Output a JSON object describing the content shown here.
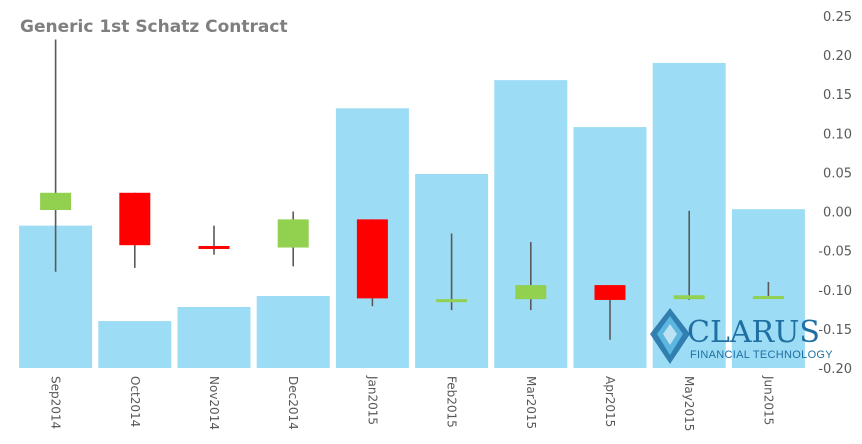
{
  "chart_data": {
    "type": "bar",
    "title": "Generic 1st Schatz Contract",
    "categories": [
      "Sep2014",
      "Oct2014",
      "Nov2014",
      "Dec2014",
      "Jan2015",
      "Feb2015",
      "Mar2015",
      "Apr2015",
      "May2015",
      "Jun2015"
    ],
    "ylim": [
      -0.2,
      0.25
    ],
    "yticks": [
      "0.25",
      "0.20",
      "0.15",
      "0.10",
      "0.05",
      "0.00",
      "-0.05",
      "-0.10",
      "-0.15",
      "-0.20"
    ],
    "ytick_values": [
      0.25,
      0.2,
      0.15,
      0.1,
      0.05,
      0.0,
      -0.05,
      -0.1,
      -0.15,
      -0.2
    ],
    "y_axis_side": "right",
    "grid": false,
    "bar_series": {
      "color": "#9ddcf5",
      "values": [
        -0.018,
        -0.14,
        -0.122,
        -0.108,
        0.132,
        0.048,
        0.168,
        0.108,
        0.19,
        0.003
      ]
    },
    "candlestick_series": {
      "up_color": "#92d050",
      "down_color": "#ff0000",
      "wick_color": "#595959",
      "ohlc": [
        {
          "open": 0.002,
          "high": 0.22,
          "low": -0.077,
          "close": 0.024
        },
        {
          "open": 0.024,
          "high": 0.024,
          "low": -0.072,
          "close": -0.043
        },
        {
          "open": -0.044,
          "high": -0.018,
          "low": -0.055,
          "close": -0.046
        },
        {
          "open": -0.046,
          "high": 0.0,
          "low": -0.07,
          "close": -0.01
        },
        {
          "open": -0.01,
          "high": -0.01,
          "low": -0.121,
          "close": -0.111
        },
        {
          "open": -0.112,
          "high": -0.028,
          "low": -0.126,
          "close": -0.112
        },
        {
          "open": -0.112,
          "high": -0.039,
          "low": -0.126,
          "close": -0.094
        },
        {
          "open": -0.094,
          "high": -0.094,
          "low": -0.164,
          "close": -0.113
        },
        {
          "open": -0.112,
          "high": 0.001,
          "low": -0.113,
          "close": -0.107
        },
        {
          "open": -0.108,
          "high": -0.09,
          "low": -0.108,
          "close": -0.108
        }
      ]
    }
  },
  "logo": {
    "name": "CLARUS",
    "tagline": "FINANCIAL TECHNOLOGY",
    "color": "#1f6fa3"
  }
}
